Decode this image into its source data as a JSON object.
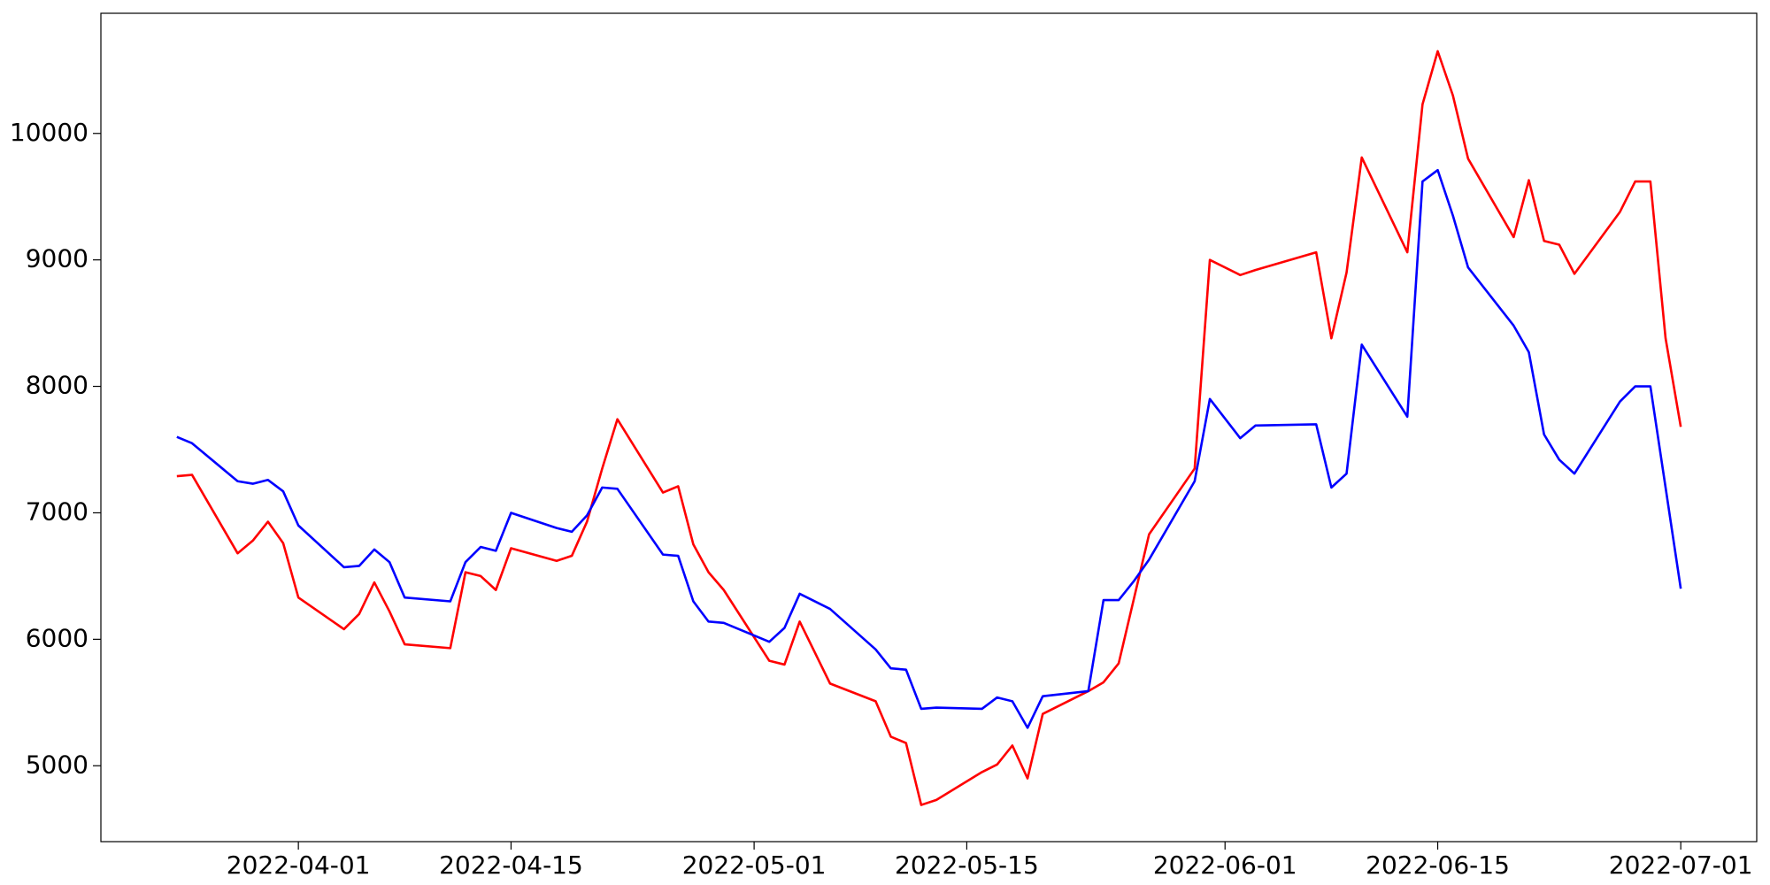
{
  "chart_data": {
    "type": "line",
    "x": [
      "2022-03-24",
      "2022-03-25",
      "2022-03-28",
      "2022-03-29",
      "2022-03-30",
      "2022-03-31",
      "2022-04-01",
      "2022-04-04",
      "2022-04-05",
      "2022-04-06",
      "2022-04-07",
      "2022-04-08",
      "2022-04-11",
      "2022-04-12",
      "2022-04-13",
      "2022-04-14",
      "2022-04-15",
      "2022-04-18",
      "2022-04-19",
      "2022-04-20",
      "2022-04-21",
      "2022-04-22",
      "2022-04-25",
      "2022-04-26",
      "2022-04-27",
      "2022-04-28",
      "2022-04-29",
      "2022-05-02",
      "2022-05-03",
      "2022-05-04",
      "2022-05-06",
      "2022-05-09",
      "2022-05-10",
      "2022-05-11",
      "2022-05-12",
      "2022-05-13",
      "2022-05-16",
      "2022-05-17",
      "2022-05-18",
      "2022-05-19",
      "2022-05-20",
      "2022-05-23",
      "2022-05-24",
      "2022-05-25",
      "2022-05-26",
      "2022-05-27",
      "2022-05-30",
      "2022-05-31",
      "2022-06-02",
      "2022-06-03",
      "2022-06-07",
      "2022-06-08",
      "2022-06-09",
      "2022-06-10",
      "2022-06-13",
      "2022-06-14",
      "2022-06-15",
      "2022-06-16",
      "2022-06-17",
      "2022-06-20",
      "2022-06-21",
      "2022-06-22",
      "2022-06-23",
      "2022-06-24",
      "2022-06-27",
      "2022-06-28",
      "2022-06-29",
      "2022-06-30",
      "2022-07-01"
    ],
    "series": [
      {
        "color": "#ff0000",
        "values": [
          7290,
          7300,
          6680,
          6780,
          6930,
          6760,
          6330,
          6080,
          6200,
          6450,
          6220,
          5960,
          5930,
          6530,
          6500,
          6390,
          6720,
          6620,
          6660,
          6930,
          7350,
          7740,
          7160,
          7210,
          6750,
          6530,
          6390,
          5830,
          5800,
          6140,
          5650,
          5510,
          5230,
          5180,
          4690,
          4730,
          4950,
          5010,
          5160,
          4900,
          5410,
          5590,
          5660,
          5810,
          6320,
          6830,
          7350,
          9000,
          8880,
          8920,
          9060,
          8380,
          8900,
          9810,
          9060,
          10230,
          10650,
          10300,
          9800,
          9180,
          9630,
          9150,
          9120,
          8890,
          9380,
          9620,
          9620,
          8380,
          7680
        ]
      },
      {
        "color": "#0000ff",
        "values": [
          7600,
          7550,
          7250,
          7230,
          7260,
          7170,
          6900,
          6570,
          6580,
          6710,
          6610,
          6330,
          6300,
          6610,
          6730,
          6700,
          7000,
          6880,
          6850,
          6980,
          7200,
          7190,
          6670,
          6660,
          6300,
          6140,
          6130,
          5980,
          6090,
          6360,
          6240,
          5920,
          5770,
          5760,
          5450,
          5460,
          5450,
          5540,
          5510,
          5300,
          5550,
          5590,
          6310,
          6310,
          6460,
          6630,
          7250,
          7900,
          7590,
          7690,
          7700,
          7200,
          7310,
          8330,
          7760,
          9620,
          9710,
          9350,
          8940,
          8480,
          8270,
          7620,
          7420,
          7310,
          7880,
          8000,
          8000,
          7200,
          6400
        ]
      }
    ],
    "xlim": [
      "2022-03-19",
      "2022-07-06"
    ],
    "xticks": [
      "2022-04-01",
      "2022-04-15",
      "2022-05-01",
      "2022-05-15",
      "2022-06-01",
      "2022-06-15",
      "2022-07-01"
    ],
    "ylim": [
      4400,
      10950
    ],
    "yticks": [
      5000,
      6000,
      7000,
      8000,
      9000,
      10000
    ]
  }
}
